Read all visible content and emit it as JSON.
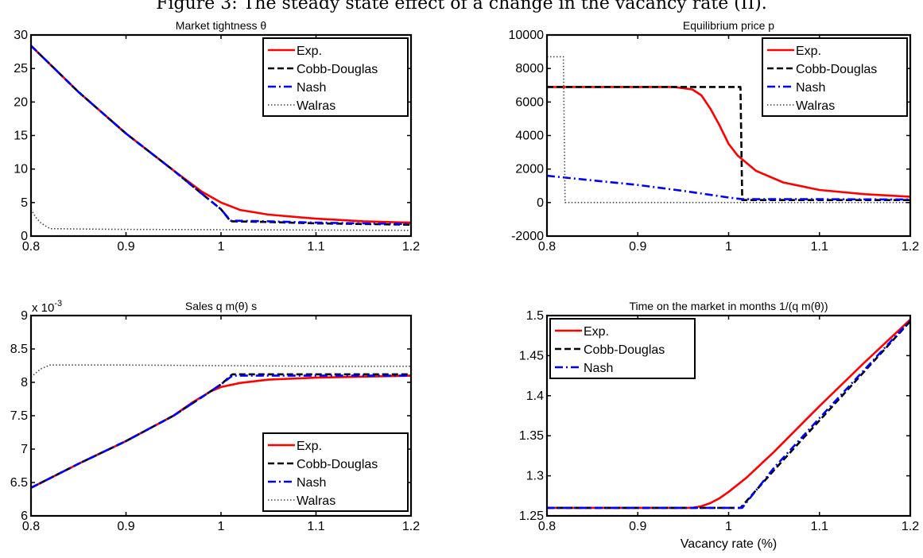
{
  "page": {
    "caption": "Figure 3: The steady state effect of a change in the vacancy rate (II)."
  },
  "colors": {
    "exp": "#ff0000",
    "cobb": "#000000",
    "nash": "#0000ff",
    "walras": "#444444"
  },
  "chart_data": [
    {
      "type": "line",
      "title": "Market tightness θ",
      "xlabel": "",
      "ylabel": "",
      "xlim": [
        0.8,
        1.2
      ],
      "ylim": [
        0,
        30
      ],
      "x_ticks": [
        0.8,
        0.9,
        1,
        1.1,
        1.2
      ],
      "x_tick_labels": [
        "0.8",
        "0.9",
        "1",
        "1.1",
        "1.2"
      ],
      "y_ticks": [
        0,
        5,
        10,
        15,
        20,
        25,
        30
      ],
      "y_tick_labels": [
        "0",
        "5",
        "10",
        "15",
        "20",
        "25",
        "30"
      ],
      "exponent_label": "",
      "legend": {
        "position": "top-right",
        "entries": [
          "Exp.",
          "Cobb-Douglas",
          "Nash",
          "Walras"
        ]
      },
      "series": [
        {
          "name": "Exp.",
          "style": "solid",
          "points": [
            [
              0.8,
              28.4
            ],
            [
              0.85,
              21.5
            ],
            [
              0.9,
              15.3
            ],
            [
              0.95,
              9.8
            ],
            [
              0.98,
              6.6
            ],
            [
              1.0,
              5.0
            ],
            [
              1.02,
              3.9
            ],
            [
              1.05,
              3.2
            ],
            [
              1.1,
              2.6
            ],
            [
              1.15,
              2.2
            ],
            [
              1.2,
              2.0
            ]
          ]
        },
        {
          "name": "Cobb-Douglas",
          "style": "dashed",
          "points": [
            [
              0.8,
              28.4
            ],
            [
              0.85,
              21.5
            ],
            [
              0.9,
              15.3
            ],
            [
              0.95,
              9.8
            ],
            [
              0.98,
              6.3
            ],
            [
              1.0,
              4.0
            ],
            [
              1.01,
              2.2
            ],
            [
              1.05,
              2.1
            ],
            [
              1.1,
              1.9
            ],
            [
              1.15,
              1.8
            ],
            [
              1.2,
              1.7
            ]
          ]
        },
        {
          "name": "Nash",
          "style": "dashdot",
          "points": [
            [
              0.8,
              28.4
            ],
            [
              0.85,
              21.5
            ],
            [
              0.9,
              15.3
            ],
            [
              0.95,
              9.8
            ],
            [
              0.98,
              6.3
            ],
            [
              1.0,
              4.0
            ],
            [
              1.01,
              2.3
            ],
            [
              1.05,
              2.2
            ],
            [
              1.1,
              2.0
            ],
            [
              1.15,
              1.9
            ],
            [
              1.2,
              1.8
            ]
          ]
        },
        {
          "name": "Walras",
          "style": "dotted",
          "points": [
            [
              0.8,
              4.0
            ],
            [
              0.805,
              2.8
            ],
            [
              0.81,
              2.0
            ],
            [
              0.82,
              1.1
            ],
            [
              0.9,
              1.0
            ],
            [
              1.0,
              0.95
            ],
            [
              1.1,
              0.9
            ],
            [
              1.2,
              0.85
            ]
          ]
        }
      ]
    },
    {
      "type": "line",
      "title": "Equilibrium price p",
      "xlabel": "",
      "ylabel": "",
      "xlim": [
        0.8,
        1.2
      ],
      "ylim": [
        -2000,
        10000
      ],
      "x_ticks": [
        0.8,
        0.9,
        1,
        1.1,
        1.2
      ],
      "x_tick_labels": [
        "0.8",
        "0.9",
        "1",
        "1.1",
        "1.2"
      ],
      "y_ticks": [
        -2000,
        0,
        2000,
        4000,
        6000,
        8000,
        10000
      ],
      "y_tick_labels": [
        "-2000",
        "0",
        "2000",
        "4000",
        "6000",
        "8000",
        "10000"
      ],
      "exponent_label": "",
      "legend": {
        "position": "top-right",
        "entries": [
          "Exp.",
          "Cobb-Douglas",
          "Nash",
          "Walras"
        ]
      },
      "series": [
        {
          "name": "Exp.",
          "style": "solid",
          "points": [
            [
              0.8,
              6900
            ],
            [
              0.94,
              6900
            ],
            [
              0.96,
              6750
            ],
            [
              0.97,
              6400
            ],
            [
              0.98,
              5600
            ],
            [
              0.99,
              4600
            ],
            [
              1.0,
              3500
            ],
            [
              1.01,
              2800
            ],
            [
              1.03,
              1900
            ],
            [
              1.06,
              1200
            ],
            [
              1.1,
              750
            ],
            [
              1.15,
              500
            ],
            [
              1.2,
              350
            ]
          ]
        },
        {
          "name": "Cobb-Douglas",
          "style": "dashed",
          "points": [
            [
              0.8,
              6900
            ],
            [
              1.013,
              6900
            ],
            [
              1.015,
              150
            ],
            [
              1.1,
              150
            ],
            [
              1.2,
              150
            ]
          ]
        },
        {
          "name": "Nash",
          "style": "dashdot",
          "points": [
            [
              0.8,
              1600
            ],
            [
              0.9,
              1050
            ],
            [
              0.95,
              700
            ],
            [
              1.0,
              300
            ],
            [
              1.015,
              200
            ],
            [
              1.1,
              200
            ],
            [
              1.2,
              180
            ]
          ]
        },
        {
          "name": "Walras",
          "style": "dotted",
          "points": [
            [
              0.8,
              8700
            ],
            [
              0.818,
              8700
            ],
            [
              0.82,
              0
            ],
            [
              0.9,
              0
            ],
            [
              1.0,
              0
            ],
            [
              1.2,
              0
            ]
          ]
        }
      ]
    },
    {
      "type": "line",
      "title": "Sales q m(θ) s",
      "xlabel": "",
      "ylabel": "",
      "xlim": [
        0.8,
        1.2
      ],
      "ylim": [
        6,
        9
      ],
      "x_ticks": [
        0.8,
        0.9,
        1,
        1.1,
        1.2
      ],
      "x_tick_labels": [
        "0.8",
        "0.9",
        "1",
        "1.1",
        "1.2"
      ],
      "y_ticks": [
        6,
        6.5,
        7,
        7.5,
        8,
        8.5,
        9
      ],
      "y_tick_labels": [
        "6",
        "6.5",
        "7",
        "7.5",
        "8",
        "8.5",
        "9"
      ],
      "exponent_label": "x 10",
      "exponent_sup": "-3",
      "legend": {
        "position": "bottom-right",
        "entries": [
          "Exp.",
          "Cobb-Douglas",
          "Nash",
          "Walras"
        ]
      },
      "series": [
        {
          "name": "Exp.",
          "style": "solid",
          "points": [
            [
              0.8,
              6.42
            ],
            [
              0.85,
              6.78
            ],
            [
              0.9,
              7.12
            ],
            [
              0.95,
              7.5
            ],
            [
              0.97,
              7.7
            ],
            [
              0.99,
              7.87
            ],
            [
              1.0,
              7.93
            ],
            [
              1.02,
              7.99
            ],
            [
              1.05,
              8.04
            ],
            [
              1.1,
              8.07
            ],
            [
              1.2,
              8.1
            ]
          ]
        },
        {
          "name": "Cobb-Douglas",
          "style": "dashed",
          "points": [
            [
              0.8,
              6.42
            ],
            [
              0.85,
              6.78
            ],
            [
              0.9,
              7.12
            ],
            [
              0.95,
              7.5
            ],
            [
              0.98,
              7.78
            ],
            [
              1.0,
              7.97
            ],
            [
              1.012,
              8.12
            ],
            [
              1.1,
              8.12
            ],
            [
              1.2,
              8.12
            ]
          ]
        },
        {
          "name": "Nash",
          "style": "dashdot",
          "points": [
            [
              0.8,
              6.42
            ],
            [
              0.85,
              6.78
            ],
            [
              0.9,
              7.12
            ],
            [
              0.95,
              7.5
            ],
            [
              0.98,
              7.78
            ],
            [
              1.0,
              7.97
            ],
            [
              1.012,
              8.1
            ],
            [
              1.1,
              8.1
            ],
            [
              1.2,
              8.1
            ]
          ]
        },
        {
          "name": "Walras",
          "style": "dotted",
          "points": [
            [
              0.8,
              8.08
            ],
            [
              0.81,
              8.2
            ],
            [
              0.82,
              8.26
            ],
            [
              0.9,
              8.26
            ],
            [
              1.0,
              8.25
            ],
            [
              1.1,
              8.24
            ],
            [
              1.2,
              8.24
            ]
          ]
        }
      ]
    },
    {
      "type": "line",
      "title": "Time on the market in months 1/(q m(θ))",
      "xlabel": "Vacancy rate (%)",
      "ylabel": "",
      "xlim": [
        0.8,
        1.2
      ],
      "ylim": [
        1.25,
        1.5
      ],
      "x_ticks": [
        0.8,
        0.9,
        1,
        1.1,
        1.2
      ],
      "x_tick_labels": [
        "0.8",
        "0.9",
        "1",
        "1.1",
        "1.2"
      ],
      "y_ticks": [
        1.25,
        1.3,
        1.35,
        1.4,
        1.45,
        1.5
      ],
      "y_tick_labels": [
        "1.25",
        "1.3",
        "1.35",
        "1.4",
        "1.45",
        "1.5"
      ],
      "exponent_label": "",
      "legend": {
        "position": "top-left",
        "entries": [
          "Exp.",
          "Cobb-Douglas",
          "Nash"
        ]
      },
      "series": [
        {
          "name": "Exp.",
          "style": "solid",
          "points": [
            [
              0.8,
              1.26
            ],
            [
              0.96,
              1.26
            ],
            [
              0.97,
              1.262
            ],
            [
              0.98,
              1.266
            ],
            [
              0.99,
              1.272
            ],
            [
              1.0,
              1.28
            ],
            [
              1.02,
              1.298
            ],
            [
              1.05,
              1.33
            ],
            [
              1.1,
              1.387
            ],
            [
              1.15,
              1.442
            ],
            [
              1.2,
              1.495
            ]
          ]
        },
        {
          "name": "Cobb-Douglas",
          "style": "dashed",
          "points": [
            [
              0.8,
              1.26
            ],
            [
              1.013,
              1.26
            ],
            [
              1.05,
              1.307
            ],
            [
              1.1,
              1.369
            ],
            [
              1.15,
              1.431
            ],
            [
              1.2,
              1.493
            ]
          ]
        },
        {
          "name": "Nash",
          "style": "dashdot",
          "points": [
            [
              0.8,
              1.26
            ],
            [
              1.015,
              1.26
            ],
            [
              1.05,
              1.31
            ],
            [
              1.1,
              1.372
            ],
            [
              1.15,
              1.433
            ],
            [
              1.2,
              1.494
            ]
          ]
        }
      ]
    }
  ],
  "x_axis_labels": [
    "",
    "",
    "Vacancy rate (%)",
    "Vacancy rate (%)"
  ]
}
